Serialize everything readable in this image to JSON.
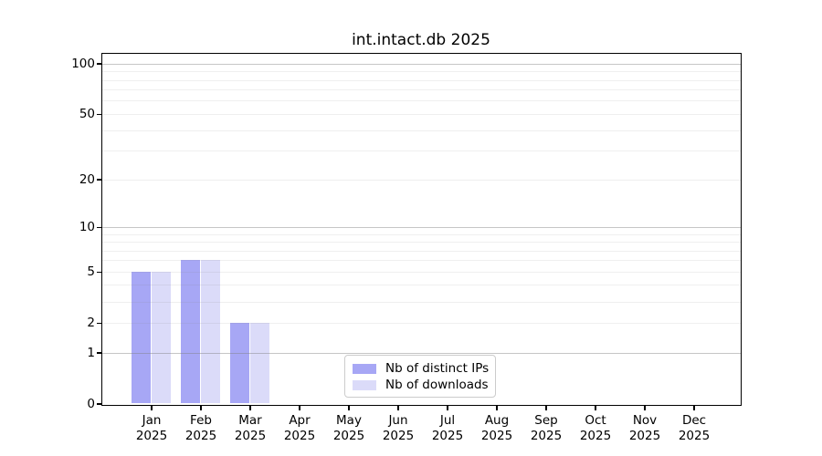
{
  "chart_data": {
    "type": "bar",
    "title": "int.intact.db 2025",
    "categories": [
      "Jan",
      "Feb",
      "Mar",
      "Apr",
      "May",
      "Jun",
      "Jul",
      "Aug",
      "Sep",
      "Oct",
      "Nov",
      "Dec"
    ],
    "year_label": "2025",
    "series": [
      {
        "name": "Nb of distinct IPs",
        "color": "#a7a7f5",
        "values": [
          5,
          6,
          2,
          0,
          0,
          0,
          0,
          0,
          0,
          0,
          0,
          0
        ]
      },
      {
        "name": "Nb of downloads",
        "color": "#dbdbf9",
        "values": [
          5,
          6,
          2,
          0,
          0,
          0,
          0,
          0,
          0,
          0,
          0,
          0
        ]
      }
    ],
    "xlabel": "",
    "ylabel": "",
    "y_scale": "log10(value+1)",
    "y_ticks": [
      0,
      1,
      2,
      5,
      10,
      20,
      50,
      100
    ],
    "y_major_gridlines": [
      1,
      10,
      100
    ],
    "y_minor_gridlines": [
      2,
      3,
      4,
      5,
      6,
      7,
      8,
      9,
      20,
      30,
      40,
      50,
      60,
      70,
      80,
      90
    ],
    "ylim": [
      0,
      115
    ],
    "grid": true,
    "grid_above_bars": true,
    "legend_position": "lower center",
    "colors": {
      "axis": "#000000",
      "major_grid": "#c6c6c6",
      "minor_grid": "#efefef",
      "legend_border": "#cccccc",
      "background": "#ffffff"
    }
  }
}
